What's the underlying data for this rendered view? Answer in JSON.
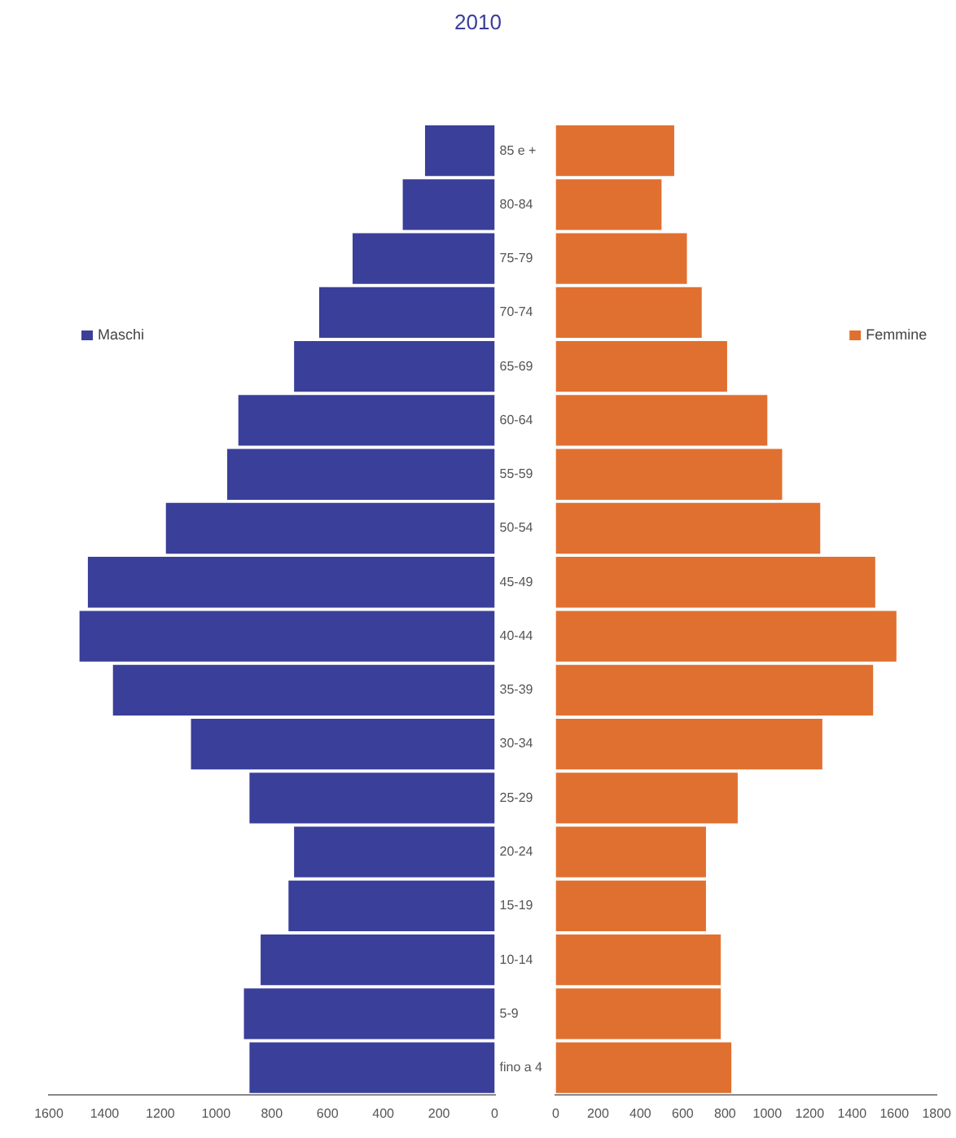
{
  "chart_data": [
    {
      "type": "bar",
      "title": "2010",
      "orientation": "horizontal",
      "legend": "top left",
      "grid": false,
      "categories": [
        "85 e +",
        "80-84",
        "75-79",
        "70-74",
        "65-69",
        "60-64",
        "55-59",
        "50-54",
        "45-49",
        "40-44",
        "35-39",
        "30-34",
        "25-29",
        "20-24",
        "15-19",
        "10-14",
        "5-9",
        "fino a 4"
      ],
      "series": [
        {
          "name": "Maschi",
          "color": "#3a3f9a",
          "values": [
            250,
            330,
            510,
            630,
            720,
            920,
            960,
            1180,
            1460,
            1490,
            1370,
            1090,
            880,
            720,
            740,
            840,
            900,
            880
          ]
        }
      ],
      "xlim": [
        1600,
        0
      ],
      "xticks": [
        1600,
        1400,
        1200,
        1000,
        800,
        600,
        400,
        200,
        0
      ]
    },
    {
      "type": "bar",
      "orientation": "horizontal",
      "legend": "top right",
      "tick_labels": "x",
      "grid": false,
      "categories": [
        null,
        null,
        null,
        null,
        null,
        null,
        null,
        null,
        null,
        null,
        null,
        null,
        null,
        null,
        null,
        null,
        null,
        null
      ],
      "series": [
        {
          "name": "Femmine",
          "color": "#e07030",
          "values": [
            560,
            500,
            620,
            690,
            810,
            1000,
            1070,
            1250,
            1510,
            1610,
            1500,
            1260,
            860,
            710,
            710,
            780,
            780,
            830
          ]
        }
      ],
      "xlim": [
        0,
        1800
      ],
      "xticks": [
        0,
        200,
        400,
        600,
        800,
        1000,
        1200,
        1400,
        1600,
        1800
      ]
    }
  ]
}
